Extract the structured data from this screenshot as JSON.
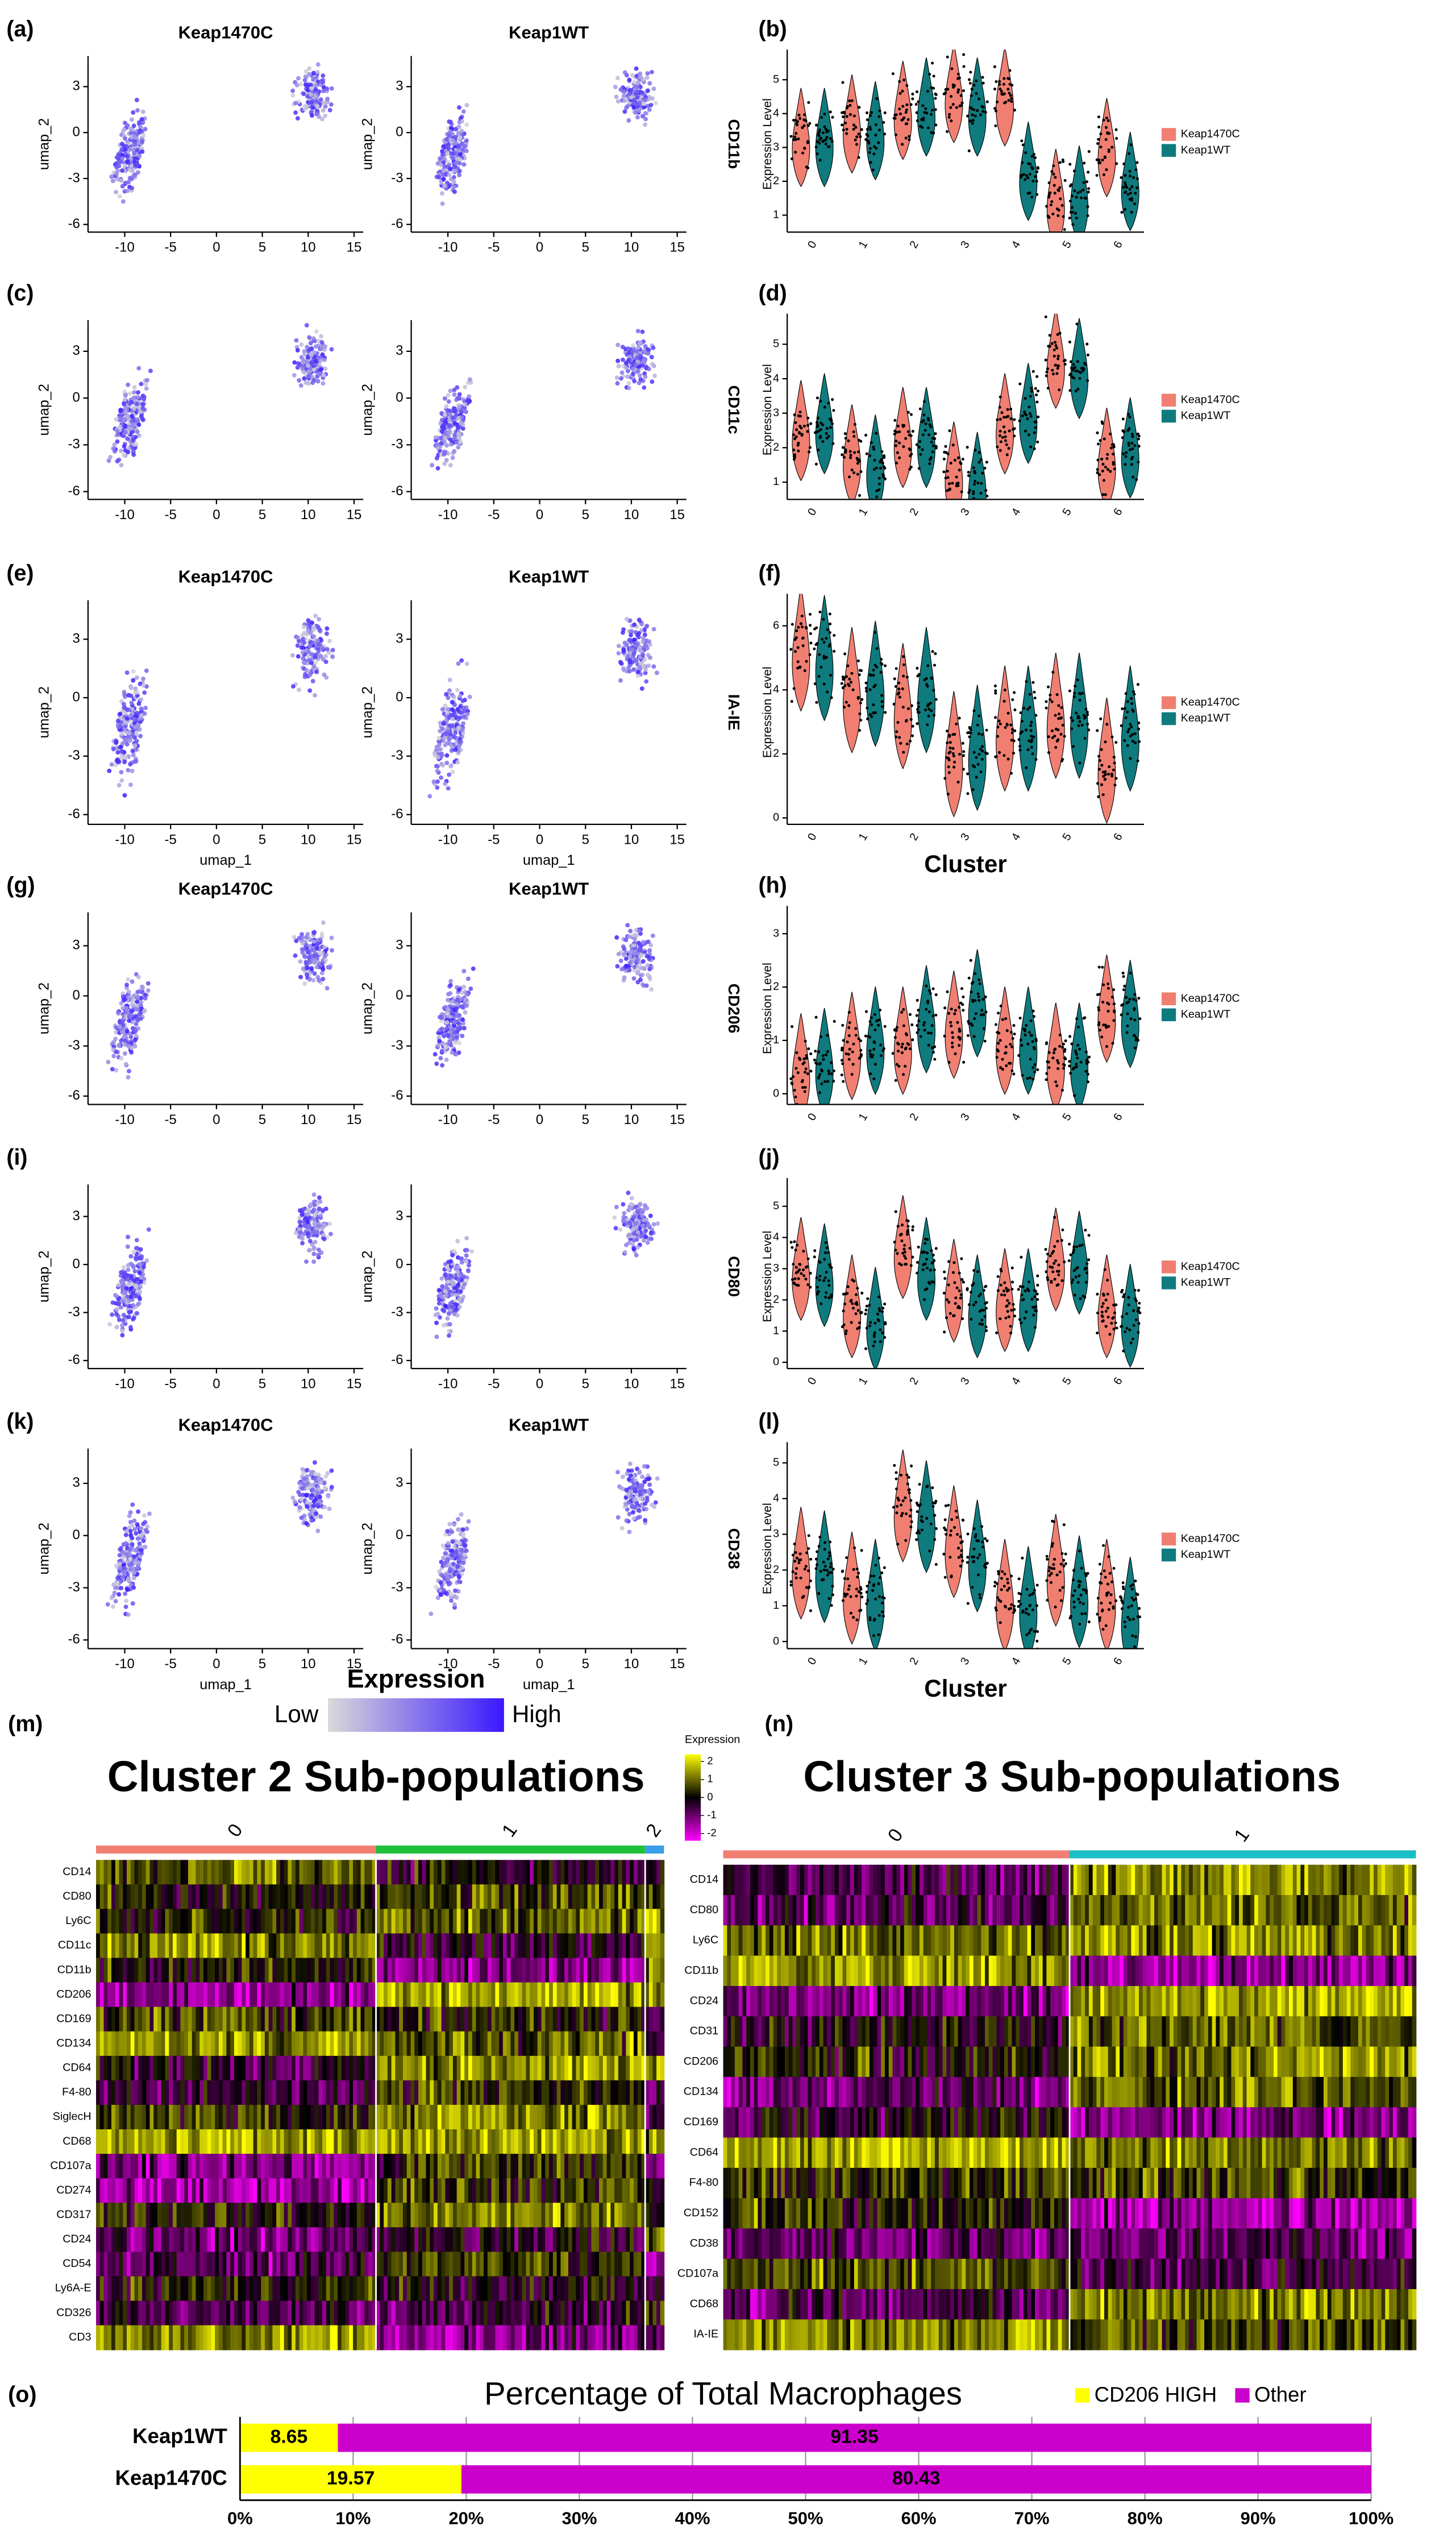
{
  "chart_data": [
    {
      "type": "umap",
      "label": "(a)",
      "titles": [
        "Keap1470C",
        "Keap1WT"
      ],
      "gene": "CD11b",
      "ylabel": "umap_2",
      "xlim": [
        -14,
        16
      ],
      "ylim": [
        -6.5,
        5
      ],
      "xticks": [
        -10,
        -5,
        0,
        5,
        10,
        15
      ],
      "yticks": [
        -6,
        -3,
        0,
        3
      ]
    },
    {
      "type": "violin",
      "label": "(b)",
      "ylabel": "Expression Level",
      "categories": [
        "0",
        "1",
        "2",
        "3",
        "4",
        "5",
        "6"
      ],
      "series": [
        {
          "name": "Keap1470C",
          "color": "#f07f72",
          "values": [
            3.3,
            3.7,
            4.1,
            4.6,
            4.5,
            1.5,
            3.0
          ]
        },
        {
          "name": "Keap1WT",
          "color": "#0f7b7e",
          "values": [
            3.3,
            3.5,
            4.2,
            4.2,
            2.3,
            1.6,
            2.0
          ]
        }
      ],
      "ylim": [
        0.5,
        5.7
      ],
      "yticks": [
        1,
        2,
        3,
        4,
        5
      ]
    },
    {
      "type": "umap",
      "label": "(c)",
      "gene": "CD11c",
      "ylabel": "umap_2",
      "xlim": [
        -14,
        16
      ],
      "ylim": [
        -6.5,
        5
      ],
      "xticks": [
        -10,
        -5,
        0,
        5,
        10,
        15
      ],
      "yticks": [
        -6,
        -3,
        0,
        3
      ]
    },
    {
      "type": "violin",
      "label": "(d)",
      "ylabel": "Expression Level",
      "categories": [
        "0",
        "1",
        "2",
        "3",
        "4",
        "5",
        "6"
      ],
      "series": [
        {
          "name": "Keap1470C",
          "color": "#f07f72",
          "values": [
            2.5,
            1.8,
            2.3,
            1.3,
            2.7,
            4.6,
            1.7
          ]
        },
        {
          "name": "Keap1WT",
          "color": "#0f7b7e",
          "values": [
            2.7,
            1.5,
            2.3,
            1.0,
            3.0,
            4.3,
            2.0
          ]
        }
      ],
      "ylim": [
        0.5,
        5.7
      ],
      "yticks": [
        1,
        2,
        3,
        4,
        5
      ]
    },
    {
      "type": "umap",
      "label": "(e)",
      "titles": [
        "Keap1470C",
        "Keap1WT"
      ],
      "gene": "IA-IE",
      "xlabel": "umap_1",
      "ylabel": "umap_2",
      "xlim": [
        -14,
        16
      ],
      "ylim": [
        -6.5,
        5
      ],
      "xticks": [
        -10,
        -5,
        0,
        5,
        10,
        15
      ],
      "yticks": [
        -6,
        -3,
        0,
        3
      ]
    },
    {
      "type": "violin",
      "label": "(f)",
      "ylabel": "Expression Level",
      "xlabel": "Cluster",
      "categories": [
        "0",
        "1",
        "2",
        "3",
        "4",
        "5",
        "6"
      ],
      "series": [
        {
          "name": "Keap1470C",
          "color": "#f07f72",
          "values": [
            5.3,
            4.0,
            3.5,
            2.0,
            2.8,
            3.2,
            1.8
          ]
        },
        {
          "name": "Keap1WT",
          "color": "#0f7b7e",
          "values": [
            5.0,
            4.2,
            4.0,
            2.2,
            2.8,
            3.2,
            2.8
          ]
        }
      ],
      "ylim": [
        -0.2,
        6.8
      ],
      "yticks": [
        0,
        2,
        4,
        6
      ]
    },
    {
      "type": "umap",
      "label": "(g)",
      "titles": [
        "Keap1470C",
        "Keap1WT"
      ],
      "gene": "CD206",
      "ylabel": "umap_2",
      "xlim": [
        -14,
        16
      ],
      "ylim": [
        -6.5,
        5
      ],
      "xticks": [
        -10,
        -5,
        0,
        5,
        10,
        15
      ],
      "yticks": [
        -6,
        -3,
        0,
        3
      ]
    },
    {
      "type": "violin",
      "label": "(h)",
      "ylabel": "Expression Level",
      "categories": [
        "0",
        "1",
        "2",
        "3",
        "4",
        "5",
        "6"
      ],
      "series": [
        {
          "name": "Keap1470C",
          "color": "#f07f72",
          "values": [
            0.5,
            0.9,
            1.0,
            1.3,
            1.0,
            0.7,
            1.6
          ]
        },
        {
          "name": "Keap1WT",
          "color": "#0f7b7e",
          "values": [
            0.6,
            1.0,
            1.4,
            1.7,
            1.0,
            0.7,
            1.5
          ]
        }
      ],
      "ylim": [
        -0.2,
        3.4
      ],
      "yticks": [
        0,
        1,
        2,
        3
      ]
    },
    {
      "type": "umap",
      "label": "(i)",
      "gene": "CD80",
      "ylabel": "umap_2",
      "xlim": [
        -14,
        16
      ],
      "ylim": [
        -6.5,
        5
      ],
      "xticks": [
        -10,
        -5,
        0,
        5,
        10,
        15
      ],
      "yticks": [
        -6,
        -3,
        0,
        3
      ]
    },
    {
      "type": "violin",
      "label": "(j)",
      "ylabel": "Expression Level",
      "categories": [
        "0",
        "1",
        "2",
        "3",
        "4",
        "5",
        "6"
      ],
      "series": [
        {
          "name": "Keap1470C",
          "color": "#f07f72",
          "values": [
            3.0,
            1.8,
            3.7,
            2.3,
            2.0,
            3.3,
            1.8
          ]
        },
        {
          "name": "Keap1WT",
          "color": "#0f7b7e",
          "values": [
            2.8,
            1.4,
            3.0,
            1.8,
            2.0,
            3.2,
            1.5
          ]
        }
      ],
      "ylim": [
        -0.2,
        5.7
      ],
      "yticks": [
        0,
        1,
        2,
        3,
        4,
        5
      ]
    },
    {
      "type": "umap",
      "label": "(k)",
      "titles": [
        "Keap1470C",
        "Keap1WT"
      ],
      "gene": "CD38",
      "xlabel": "umap_1",
      "ylabel": "umap_2",
      "xlim": [
        -14,
        16
      ],
      "ylim": [
        -6.5,
        5
      ],
      "xticks": [
        -10,
        -5,
        0,
        5,
        10,
        15
      ],
      "yticks": [
        -6,
        -3,
        0,
        3
      ]
    },
    {
      "type": "violin",
      "label": "(l)",
      "ylabel": "Expression Level",
      "xlabel": "Cluster",
      "categories": [
        "0",
        "1",
        "2",
        "3",
        "4",
        "5",
        "6"
      ],
      "series": [
        {
          "name": "Keap1470C",
          "color": "#f07f72",
          "values": [
            2.2,
            1.5,
            3.8,
            2.8,
            1.3,
            2.0,
            1.3
          ]
        },
        {
          "name": "Keap1WT",
          "color": "#0f7b7e",
          "values": [
            2.1,
            1.3,
            3.5,
            2.4,
            1.1,
            1.4,
            0.8
          ]
        }
      ],
      "ylim": [
        -0.2,
        5.4
      ],
      "yticks": [
        0,
        1,
        2,
        3,
        4,
        5
      ]
    },
    {
      "type": "colorbar",
      "title": "Expression",
      "low": "Low",
      "high": "High"
    },
    {
      "type": "heatmap",
      "label": "(m)",
      "title": "Cluster 2 Sub-populations",
      "groups": [
        {
          "name": "0",
          "color": "#f07f72",
          "cells": 520
        },
        {
          "name": "1",
          "color": "#1fbf3a",
          "cells": 500
        },
        {
          "name": "2",
          "color": "#3a9ee8",
          "cells": 35
        }
      ],
      "rows": [
        "CD14",
        "CD80",
        "Ly6C",
        "CD11c",
        "CD11b",
        "CD206",
        "CD169",
        "CD134",
        "CD64",
        "F4-80",
        "SiglecH",
        "CD68",
        "CD107a",
        "CD274",
        "CD317",
        "CD24",
        "CD54",
        "Ly6A-E",
        "CD326",
        "CD3"
      ],
      "legend_title": "Expression",
      "legend_lim": [
        -2.4,
        2.4
      ],
      "legend_ticks": [
        2,
        1,
        0,
        -1,
        -2
      ]
    },
    {
      "type": "heatmap",
      "label": "(n)",
      "title": "Cluster 3 Sub-populations",
      "groups": [
        {
          "name": "0",
          "color": "#f07f72",
          "cells": 500
        },
        {
          "name": "1",
          "color": "#19bfc4",
          "cells": 500
        }
      ],
      "rows": [
        "CD14",
        "CD80",
        "Ly6C",
        "CD11b",
        "CD24",
        "CD31",
        "CD206",
        "CD134",
        "CD169",
        "CD64",
        "F4-80",
        "CD152",
        "CD38",
        "CD107a",
        "CD68",
        "IA-IE"
      ]
    },
    {
      "type": "stacked_barh",
      "label": "(o)",
      "title": "Percentage of Total Macrophages",
      "categories": [
        "Keap1WT",
        "Keap1470C"
      ],
      "series": [
        {
          "name": "CD206 HIGH",
          "color": "#ffff00",
          "values": [
            8.65,
            19.57
          ]
        },
        {
          "name": "Other",
          "color": "#cc00cc",
          "values": [
            91.35,
            80.43
          ]
        }
      ],
      "xlim": [
        0,
        100
      ],
      "xticks": [
        {
          "value": 0,
          "label": "0%"
        },
        {
          "value": 10,
          "label": "10%"
        },
        {
          "value": 20,
          "label": "20%"
        },
        {
          "value": 30,
          "label": "30%"
        },
        {
          "value": 40,
          "label": "40%"
        },
        {
          "value": 50,
          "label": "50%"
        },
        {
          "value": 60,
          "label": "60%"
        },
        {
          "value": 70,
          "label": "70%"
        },
        {
          "value": 80,
          "label": "80%"
        },
        {
          "value": 90,
          "label": "90%"
        },
        {
          "value": 100,
          "label": "100%"
        }
      ],
      "grid": true
    }
  ]
}
